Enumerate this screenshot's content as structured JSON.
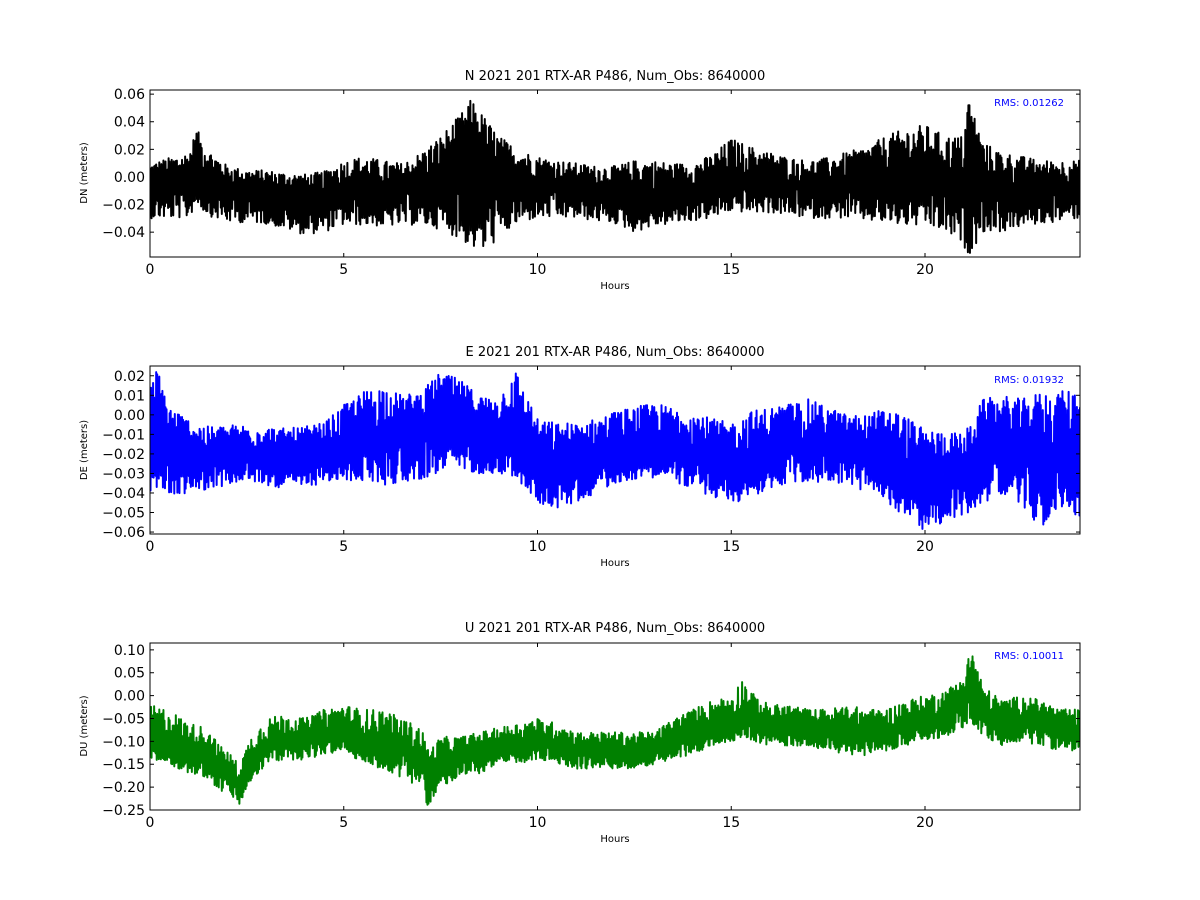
{
  "chart_data": [
    {
      "type": "line",
      "title": "N 2021 201 RTX-AR  P486, Num_Obs: 8640000",
      "xlabel": "Hours",
      "ylabel": "DN (meters)",
      "xlim": [
        0,
        24
      ],
      "ylim": [
        -0.058,
        0.063
      ],
      "xticks": [
        0,
        5,
        10,
        15,
        20
      ],
      "yticks": [
        -0.04,
        -0.02,
        0.0,
        0.02,
        0.04,
        0.06
      ],
      "ytick_labels": [
        "−0.04",
        "−0.02",
        "0.00",
        "0.02",
        "0.04",
        "0.06"
      ],
      "annotation": "RMS:  0.01262",
      "color": "#000000",
      "annotation_color": "#0000ff",
      "grid": false,
      "series": [
        {
          "x": [
            0,
            1,
            1.2,
            1.5,
            2,
            2.5,
            3,
            3.5,
            4,
            4.5,
            5,
            5.5,
            6,
            6.5,
            7,
            7.5,
            8,
            8.3,
            8.6,
            9,
            9.5,
            10,
            10.5,
            11,
            11.5,
            12,
            12.5,
            13,
            13.5,
            14,
            14.5,
            15,
            15.5,
            16,
            16.5,
            17,
            17.5,
            18,
            18.5,
            19,
            19.5,
            20,
            20.5,
            21,
            21.1,
            21.5,
            22,
            22.5,
            23,
            23.5,
            24
          ],
          "y": [
            -0.008,
            -0.004,
            0.003,
            -0.003,
            -0.008,
            -0.01,
            -0.011,
            -0.013,
            -0.015,
            -0.014,
            -0.01,
            -0.01,
            -0.012,
            -0.01,
            -0.008,
            -0.004,
            0.003,
            0.006,
            0.002,
            -0.002,
            -0.003,
            -0.004,
            -0.006,
            -0.008,
            -0.01,
            -0.011,
            -0.013,
            -0.012,
            -0.011,
            -0.01,
            -0.007,
            -0.003,
            -0.004,
            -0.005,
            -0.006,
            -0.008,
            -0.008,
            -0.006,
            -0.004,
            -0.002,
            0.0,
            0.0,
            -0.004,
            -0.008,
            -0.006,
            -0.007,
            -0.008,
            -0.009,
            -0.01,
            -0.009,
            -0.008
          ],
          "y_min": [
            -0.03,
            -0.03,
            -0.02,
            -0.028,
            -0.033,
            -0.033,
            -0.034,
            -0.038,
            -0.042,
            -0.04,
            -0.035,
            -0.035,
            -0.036,
            -0.035,
            -0.035,
            -0.038,
            -0.045,
            -0.052,
            -0.055,
            -0.045,
            -0.034,
            -0.03,
            -0.03,
            -0.03,
            -0.032,
            -0.034,
            -0.04,
            -0.036,
            -0.034,
            -0.032,
            -0.03,
            -0.025,
            -0.026,
            -0.026,
            -0.028,
            -0.03,
            -0.03,
            -0.03,
            -0.032,
            -0.034,
            -0.036,
            -0.036,
            -0.04,
            -0.05,
            -0.058,
            -0.04,
            -0.04,
            -0.036,
            -0.034,
            -0.032,
            -0.03
          ],
          "y_max": [
            0.01,
            0.018,
            0.035,
            0.02,
            0.008,
            0.005,
            0.005,
            0.003,
            0.002,
            0.004,
            0.012,
            0.015,
            0.012,
            0.01,
            0.018,
            0.03,
            0.045,
            0.057,
            0.045,
            0.03,
            0.02,
            0.015,
            0.012,
            0.01,
            0.008,
            0.008,
            0.012,
            0.012,
            0.01,
            0.01,
            0.016,
            0.028,
            0.022,
            0.018,
            0.014,
            0.012,
            0.014,
            0.018,
            0.022,
            0.03,
            0.035,
            0.038,
            0.03,
            0.03,
            0.063,
            0.025,
            0.018,
            0.015,
            0.012,
            0.012,
            0.012
          ]
        }
      ]
    },
    {
      "type": "line",
      "title": "E 2021 201 RTX-AR  P486, Num_Obs: 8640000",
      "xlabel": "Hours",
      "ylabel": "DE (meters)",
      "xlim": [
        0,
        24
      ],
      "ylim": [
        -0.061,
        0.025
      ],
      "xticks": [
        0,
        5,
        10,
        15,
        20
      ],
      "yticks": [
        -0.06,
        -0.05,
        -0.04,
        -0.03,
        -0.02,
        -0.01,
        0.0,
        0.01,
        0.02
      ],
      "ytick_labels": [
        "−0.06",
        "−0.05",
        "−0.04",
        "−0.03",
        "−0.02",
        "−0.01",
        "0.00",
        "0.01",
        "0.02"
      ],
      "annotation": "RMS:  0.01932",
      "color": "#0000ff",
      "annotation_color": "#0000ff",
      "grid": false,
      "series": [
        {
          "x": [
            0,
            0.2,
            0.5,
            1,
            1.5,
            2,
            2.5,
            3,
            3.5,
            4,
            4.5,
            5,
            5.5,
            6,
            6.5,
            7,
            7.5,
            8,
            8.5,
            9,
            9.4,
            10,
            10.5,
            11,
            11.5,
            12,
            12.5,
            13,
            13.5,
            14,
            14.5,
            15,
            15.5,
            16,
            16.5,
            17,
            17.5,
            18,
            18.5,
            19,
            19.5,
            20,
            20.5,
            21,
            21.5,
            22,
            22.5,
            23,
            23.5,
            24
          ],
          "y": [
            -0.015,
            -0.01,
            -0.018,
            -0.022,
            -0.024,
            -0.022,
            -0.02,
            -0.022,
            -0.023,
            -0.022,
            -0.02,
            -0.016,
            -0.012,
            -0.01,
            -0.008,
            -0.006,
            -0.003,
            -0.004,
            -0.006,
            -0.008,
            -0.01,
            -0.024,
            -0.026,
            -0.024,
            -0.022,
            -0.018,
            -0.016,
            -0.014,
            -0.016,
            -0.02,
            -0.024,
            -0.026,
            -0.024,
            -0.02,
            -0.018,
            -0.017,
            -0.016,
            -0.018,
            -0.02,
            -0.024,
            -0.03,
            -0.034,
            -0.032,
            -0.03,
            -0.018,
            -0.016,
            -0.018,
            -0.022,
            -0.02,
            -0.02
          ],
          "y_min": [
            -0.04,
            -0.038,
            -0.042,
            -0.04,
            -0.038,
            -0.036,
            -0.034,
            -0.036,
            -0.038,
            -0.037,
            -0.035,
            -0.034,
            -0.034,
            -0.036,
            -0.035,
            -0.033,
            -0.03,
            -0.028,
            -0.03,
            -0.03,
            -0.032,
            -0.045,
            -0.048,
            -0.045,
            -0.04,
            -0.035,
            -0.033,
            -0.032,
            -0.034,
            -0.038,
            -0.042,
            -0.046,
            -0.042,
            -0.038,
            -0.035,
            -0.035,
            -0.034,
            -0.036,
            -0.04,
            -0.045,
            -0.052,
            -0.06,
            -0.055,
            -0.052,
            -0.045,
            -0.04,
            -0.048,
            -0.058,
            -0.048,
            -0.052
          ],
          "y_max": [
            0.015,
            0.025,
            0.005,
            -0.002,
            -0.006,
            -0.005,
            -0.005,
            -0.006,
            -0.007,
            -0.006,
            -0.004,
            0.005,
            0.012,
            0.015,
            0.01,
            0.012,
            0.022,
            0.018,
            0.01,
            0.008,
            0.025,
            -0.002,
            -0.004,
            -0.004,
            -0.002,
            0.002,
            0.004,
            0.006,
            0.004,
            0.002,
            -0.002,
            -0.004,
            0.002,
            0.004,
            0.006,
            0.008,
            0.004,
            0.0,
            0.0,
            0.004,
            0.0,
            -0.008,
            -0.008,
            -0.01,
            0.008,
            0.01,
            0.008,
            0.012,
            0.012,
            0.014
          ]
        }
      ]
    },
    {
      "type": "line",
      "title": "U 2021 201 RTX-AR  P486, Num_Obs: 8640000",
      "xlabel": "Hours",
      "ylabel": "DU (meters)",
      "xlim": [
        0,
        24
      ],
      "ylim": [
        -0.25,
        0.115
      ],
      "xticks": [
        0,
        5,
        10,
        15,
        20
      ],
      "yticks": [
        -0.25,
        -0.2,
        -0.15,
        -0.1,
        -0.05,
        0.0,
        0.05,
        0.1
      ],
      "ytick_labels": [
        "−0.25",
        "−0.20",
        "−0.15",
        "−0.10",
        "−0.05",
        "0.00",
        "0.05",
        "0.10"
      ],
      "annotation": "RMS:  0.10011",
      "color": "#008000",
      "annotation_color": "#0000ff",
      "grid": false,
      "series": [
        {
          "x": [
            0,
            0.5,
            1,
            1.5,
            1.8,
            2,
            2.3,
            2.6,
            3,
            3.5,
            4,
            4.5,
            5,
            5.5,
            6,
            6.5,
            7,
            7.2,
            7.5,
            8,
            8.5,
            9,
            9.5,
            10,
            10.5,
            11,
            11.5,
            12,
            12.5,
            13,
            13.5,
            14,
            14.5,
            15,
            15.3,
            15.6,
            16,
            16.5,
            17,
            17.5,
            18,
            18.5,
            19,
            19.5,
            20,
            20.5,
            21,
            21.2,
            21.5,
            22,
            22.5,
            23,
            23.5,
            24
          ],
          "y": [
            -0.1,
            -0.11,
            -0.12,
            -0.13,
            -0.16,
            -0.17,
            -0.2,
            -0.15,
            -0.11,
            -0.1,
            -0.1,
            -0.09,
            -0.08,
            -0.1,
            -0.11,
            -0.12,
            -0.14,
            -0.18,
            -0.15,
            -0.14,
            -0.13,
            -0.11,
            -0.11,
            -0.1,
            -0.11,
            -0.12,
            -0.12,
            -0.12,
            -0.13,
            -0.12,
            -0.1,
            -0.09,
            -0.07,
            -0.06,
            -0.05,
            -0.06,
            -0.07,
            -0.07,
            -0.07,
            -0.08,
            -0.08,
            -0.08,
            -0.08,
            -0.07,
            -0.06,
            -0.04,
            -0.01,
            0.0,
            -0.04,
            -0.06,
            -0.05,
            -0.06,
            -0.08,
            -0.08
          ],
          "y_min": [
            -0.14,
            -0.15,
            -0.17,
            -0.18,
            -0.21,
            -0.21,
            -0.24,
            -0.19,
            -0.15,
            -0.14,
            -0.14,
            -0.13,
            -0.12,
            -0.15,
            -0.16,
            -0.18,
            -0.2,
            -0.25,
            -0.2,
            -0.18,
            -0.17,
            -0.15,
            -0.15,
            -0.14,
            -0.15,
            -0.16,
            -0.16,
            -0.16,
            -0.16,
            -0.15,
            -0.14,
            -0.13,
            -0.11,
            -0.1,
            -0.09,
            -0.1,
            -0.11,
            -0.11,
            -0.11,
            -0.12,
            -0.13,
            -0.13,
            -0.12,
            -0.11,
            -0.1,
            -0.09,
            -0.07,
            -0.06,
            -0.09,
            -0.11,
            -0.1,
            -0.11,
            -0.12,
            -0.12
          ],
          "y_max": [
            -0.02,
            -0.03,
            -0.06,
            -0.07,
            -0.11,
            -0.12,
            -0.15,
            -0.09,
            -0.05,
            -0.04,
            -0.05,
            -0.03,
            -0.02,
            -0.03,
            -0.03,
            -0.05,
            -0.07,
            -0.12,
            -0.09,
            -0.09,
            -0.08,
            -0.07,
            -0.06,
            -0.05,
            -0.06,
            -0.08,
            -0.08,
            -0.08,
            -0.08,
            -0.08,
            -0.05,
            -0.03,
            -0.01,
            0.0,
            0.04,
            0.0,
            -0.02,
            -0.02,
            -0.03,
            -0.03,
            -0.02,
            -0.03,
            -0.03,
            -0.01,
            0.0,
            0.01,
            0.04,
            0.115,
            0.02,
            -0.01,
            0.0,
            -0.01,
            -0.03,
            -0.03
          ]
        }
      ]
    }
  ]
}
